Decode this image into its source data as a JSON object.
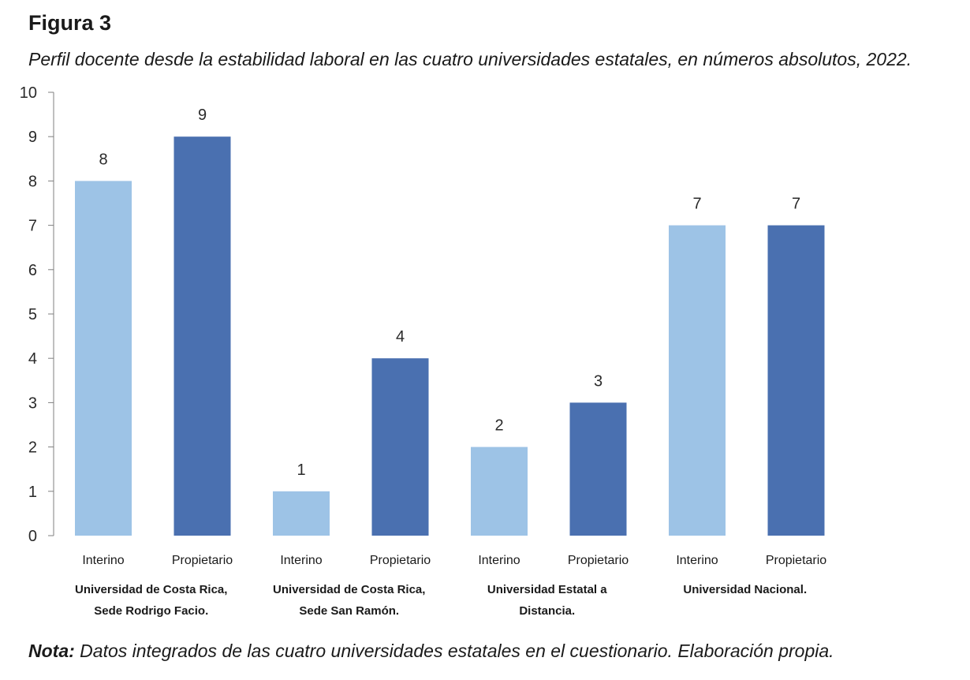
{
  "figure_label": "Figura 3",
  "note": {
    "prefix": "Nota:",
    "text": " Datos integrados de las cuatro universidades estatales en el cuestionario. Elaboración propia."
  },
  "colors": {
    "interino": "#9dc3e6",
    "propietario": "#4a70b0",
    "axis": "#7f7f7f"
  },
  "chart_data": {
    "type": "bar",
    "title": "Perfil docente desde la estabilidad laboral en las cuatro universidades estatales, en números absolutos, 2022.",
    "xlabel": "",
    "ylabel": "",
    "ylim": [
      0,
      10
    ],
    "yticks": [
      "0",
      "1",
      "2",
      "3",
      "4",
      "5",
      "6",
      "7",
      "8",
      "9",
      "10"
    ],
    "grid": false,
    "legend": "none",
    "groups": [
      {
        "name_lines": [
          "Universidad de Costa Rica,",
          "Sede Rodrigo Facio."
        ],
        "bars": [
          {
            "label": "Interino",
            "value": 8
          },
          {
            "label": "Propietario",
            "value": 9
          }
        ]
      },
      {
        "name_lines": [
          "Universidad de Costa Rica,",
          "Sede San Ramón."
        ],
        "bars": [
          {
            "label": "Interino",
            "value": 1
          },
          {
            "label": "Propietario",
            "value": 4
          }
        ]
      },
      {
        "name_lines": [
          "Universidad Estatal a",
          "Distancia."
        ],
        "bars": [
          {
            "label": "Interino",
            "value": 2
          },
          {
            "label": "Propietario",
            "value": 3
          }
        ]
      },
      {
        "name_lines": [
          "Universidad Nacional."
        ],
        "bars": [
          {
            "label": "Interino",
            "value": 7
          },
          {
            "label": "Propietario",
            "value": 7
          }
        ]
      }
    ]
  }
}
